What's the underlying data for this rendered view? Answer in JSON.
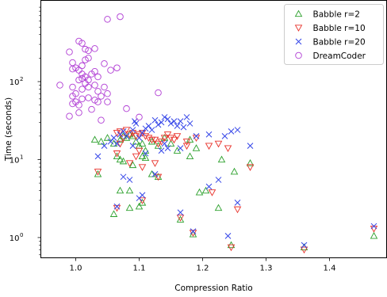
{
  "chart_data": {
    "type": "scatter",
    "title": "",
    "xlabel": "Compression Ratio",
    "ylabel": "Time (seconds)",
    "xlim": [
      0.945,
      1.49
    ],
    "ylim": [
      0.55,
      1100
    ],
    "yscale": "log",
    "grid": false,
    "legend_position": "top-right",
    "x_ticks": [
      {
        "value": 1.0,
        "label": "1.0"
      },
      {
        "value": 1.1,
        "label": "1.1"
      },
      {
        "value": 1.2,
        "label": "1.2"
      },
      {
        "value": 1.3,
        "label": "1.3"
      },
      {
        "value": 1.4,
        "label": "1.4"
      }
    ],
    "y_ticks": [
      {
        "value": 1,
        "base": "10",
        "exp": "0"
      },
      {
        "value": 10,
        "base": "10",
        "exp": "1"
      },
      {
        "value": 100,
        "base": "10",
        "exp": "2"
      }
    ],
    "series": [
      {
        "name": "Babble r=2",
        "marker": "triangle-up",
        "color": "#2ca02c",
        "points": [
          [
            1.03,
            18
          ],
          [
            1.04,
            17
          ],
          [
            1.05,
            19
          ],
          [
            1.06,
            16
          ],
          [
            1.07,
            18
          ],
          [
            1.075,
            20
          ],
          [
            1.08,
            19
          ],
          [
            1.085,
            21
          ],
          [
            1.09,
            20
          ],
          [
            1.095,
            17
          ],
          [
            1.1,
            15
          ],
          [
            1.105,
            16
          ],
          [
            1.11,
            13
          ],
          [
            1.12,
            17
          ],
          [
            1.13,
            15
          ],
          [
            1.14,
            19
          ],
          [
            1.15,
            16
          ],
          [
            1.16,
            13
          ],
          [
            1.18,
            18
          ],
          [
            1.065,
            11
          ],
          [
            1.07,
            10
          ],
          [
            1.075,
            9.5
          ],
          [
            1.09,
            8.5
          ],
          [
            1.105,
            11
          ],
          [
            1.11,
            10.5
          ],
          [
            1.12,
            6.5
          ],
          [
            1.13,
            6
          ],
          [
            1.035,
            6.5
          ],
          [
            1.18,
            11
          ],
          [
            1.19,
            14
          ],
          [
            1.23,
            10
          ],
          [
            1.25,
            7
          ],
          [
            1.275,
            9
          ],
          [
            1.06,
            2
          ],
          [
            1.07,
            4
          ],
          [
            1.085,
            4
          ],
          [
            1.1,
            2.5
          ],
          [
            1.105,
            2.8
          ],
          [
            1.165,
            1.7
          ],
          [
            1.185,
            1.1
          ],
          [
            1.195,
            3.8
          ],
          [
            1.205,
            4
          ],
          [
            1.225,
            2.4
          ],
          [
            1.245,
            0.8
          ],
          [
            1.36,
            0.75
          ],
          [
            1.47,
            1.05
          ],
          [
            1.085,
            2.4
          ]
        ]
      },
      {
        "name": "Babble r=10",
        "marker": "triangle-down",
        "color": "#e8312a",
        "points": [
          [
            1.065,
            22
          ],
          [
            1.07,
            23
          ],
          [
            1.075,
            19
          ],
          [
            1.08,
            24
          ],
          [
            1.085,
            21
          ],
          [
            1.09,
            22
          ],
          [
            1.095,
            20
          ],
          [
            1.1,
            21
          ],
          [
            1.105,
            22
          ],
          [
            1.11,
            20
          ],
          [
            1.115,
            19
          ],
          [
            1.12,
            18
          ],
          [
            1.125,
            18
          ],
          [
            1.13,
            16
          ],
          [
            1.135,
            17
          ],
          [
            1.14,
            19
          ],
          [
            1.145,
            21
          ],
          [
            1.15,
            19
          ],
          [
            1.155,
            18
          ],
          [
            1.16,
            20
          ],
          [
            1.175,
            17
          ],
          [
            1.19,
            19
          ],
          [
            1.21,
            15
          ],
          [
            1.225,
            16
          ],
          [
            1.24,
            14
          ],
          [
            1.275,
            8
          ],
          [
            1.175,
            15
          ],
          [
            1.1,
            13
          ],
          [
            1.095,
            11
          ],
          [
            1.085,
            9
          ],
          [
            1.065,
            12
          ],
          [
            1.035,
            7
          ],
          [
            1.07,
            16
          ],
          [
            1.125,
            9
          ],
          [
            1.105,
            8
          ],
          [
            1.13,
            6
          ],
          [
            1.065,
            2.4
          ],
          [
            1.105,
            3
          ],
          [
            1.165,
            1.8
          ],
          [
            1.185,
            1.15
          ],
          [
            1.215,
            3.8
          ],
          [
            1.245,
            0.75
          ],
          [
            1.255,
            2.3
          ],
          [
            1.36,
            0.7
          ],
          [
            1.47,
            1.3
          ]
        ]
      },
      {
        "name": "Babble r=20",
        "marker": "x",
        "color": "#3344e8",
        "points": [
          [
            1.035,
            11
          ],
          [
            1.045,
            15
          ],
          [
            1.055,
            17
          ],
          [
            1.06,
            19
          ],
          [
            1.065,
            16
          ],
          [
            1.07,
            21
          ],
          [
            1.075,
            23
          ],
          [
            1.08,
            20
          ],
          [
            1.09,
            24
          ],
          [
            1.093,
            31
          ],
          [
            1.095,
            29
          ],
          [
            1.1,
            19
          ],
          [
            1.105,
            22
          ],
          [
            1.11,
            25
          ],
          [
            1.115,
            27
          ],
          [
            1.12,
            24
          ],
          [
            1.125,
            32
          ],
          [
            1.13,
            28
          ],
          [
            1.135,
            30
          ],
          [
            1.14,
            35
          ],
          [
            1.145,
            33
          ],
          [
            1.15,
            29
          ],
          [
            1.155,
            31
          ],
          [
            1.16,
            27
          ],
          [
            1.165,
            31
          ],
          [
            1.17,
            26
          ],
          [
            1.175,
            35
          ],
          [
            1.18,
            29
          ],
          [
            1.19,
            20
          ],
          [
            1.21,
            21
          ],
          [
            1.235,
            20
          ],
          [
            1.245,
            23
          ],
          [
            1.255,
            24
          ],
          [
            1.275,
            15
          ],
          [
            1.09,
            15
          ],
          [
            1.11,
            12
          ],
          [
            1.135,
            13
          ],
          [
            1.14,
            16
          ],
          [
            1.145,
            14
          ],
          [
            1.165,
            14
          ],
          [
            1.075,
            6
          ],
          [
            1.085,
            5.5
          ],
          [
            1.105,
            3.5
          ],
          [
            1.125,
            6.5
          ],
          [
            1.1,
            3.2
          ],
          [
            1.065,
            2.5
          ],
          [
            1.165,
            2.1
          ],
          [
            1.185,
            1.2
          ],
          [
            1.21,
            4.5
          ],
          [
            1.225,
            5.5
          ],
          [
            1.24,
            1.05
          ],
          [
            1.255,
            2.8
          ],
          [
            1.36,
            0.8
          ],
          [
            1.47,
            1.4
          ]
        ]
      },
      {
        "name": "DreamCoder",
        "marker": "circle",
        "color": "#b03cd4",
        "points": [
          [
            1.05,
            630
          ],
          [
            1.07,
            680
          ],
          [
            0.99,
            240
          ],
          [
            0.995,
            175
          ],
          [
            1.005,
            330
          ],
          [
            1.01,
            310
          ],
          [
            1.015,
            260
          ],
          [
            1.02,
            250
          ],
          [
            1.03,
            265
          ],
          [
            1.045,
            170
          ],
          [
            1.055,
            140
          ],
          [
            1.065,
            150
          ],
          [
            1.01,
            160
          ],
          [
            1.015,
            190
          ],
          [
            1.02,
            200
          ],
          [
            1.005,
            140
          ],
          [
            1.01,
            125
          ],
          [
            0.995,
            145
          ],
          [
            1.0,
            150
          ],
          [
            1.005,
            105
          ],
          [
            1.01,
            110
          ],
          [
            1.015,
            115
          ],
          [
            1.02,
            105
          ],
          [
            1.025,
            125
          ],
          [
            1.03,
            135
          ],
          [
            1.035,
            115
          ],
          [
            0.975,
            90
          ],
          [
            0.995,
            85
          ],
          [
            1.0,
            70
          ],
          [
            1.01,
            80
          ],
          [
            1.015,
            95
          ],
          [
            1.02,
            85
          ],
          [
            1.03,
            90
          ],
          [
            1.035,
            75
          ],
          [
            1.04,
            65
          ],
          [
            1.045,
            85
          ],
          [
            1.05,
            70
          ],
          [
            0.995,
            65
          ],
          [
            1.0,
            55
          ],
          [
            1.005,
            50
          ],
          [
            1.01,
            60
          ],
          [
            1.02,
            62
          ],
          [
            1.03,
            58
          ],
          [
            1.035,
            55
          ],
          [
            1.05,
            55
          ],
          [
            1.08,
            45
          ],
          [
            1.13,
            72
          ],
          [
            0.99,
            36
          ],
          [
            1.005,
            40
          ],
          [
            1.025,
            44
          ],
          [
            1.04,
            32
          ],
          [
            1.1,
            35
          ],
          [
            0.995,
            52
          ]
        ]
      }
    ]
  }
}
